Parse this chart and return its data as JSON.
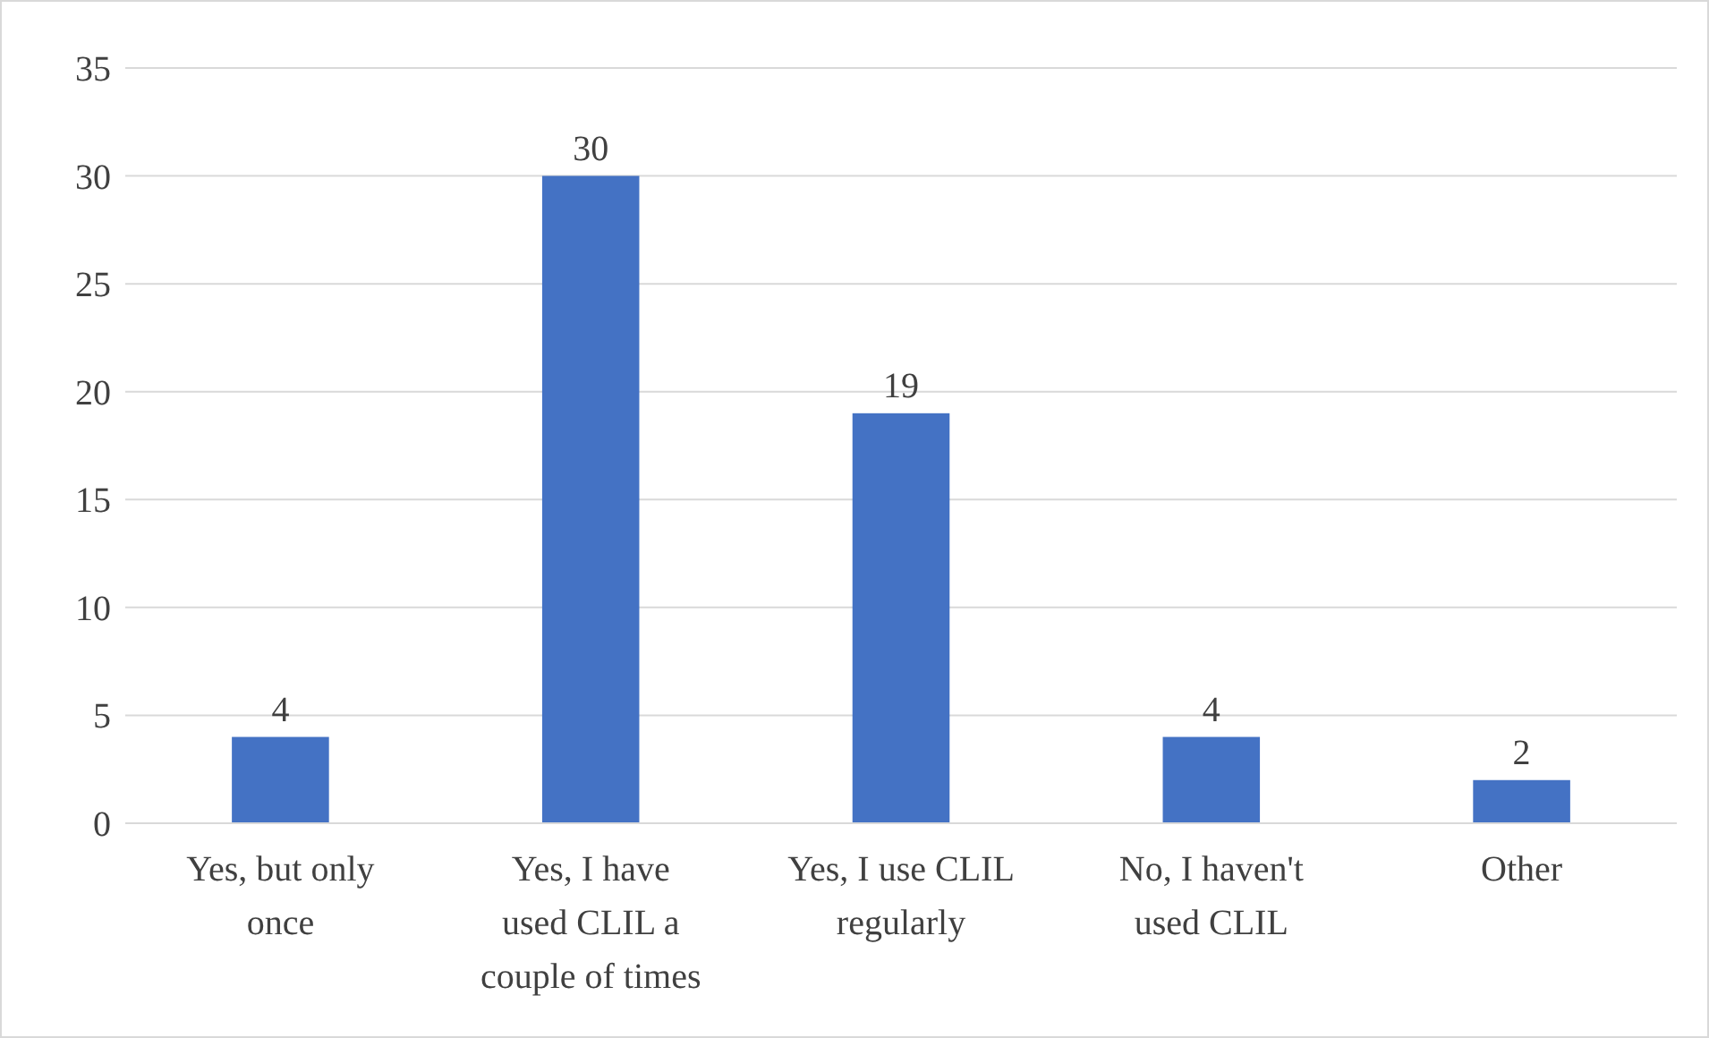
{
  "chart_data": {
    "type": "bar",
    "categories": [
      "Yes, but only once",
      "Yes, I have used CLIL a couple of times",
      "Yes, I use CLIL regularly",
      "No, I haven't used CLIL",
      "Other"
    ],
    "values": [
      4,
      30,
      19,
      4,
      2
    ],
    "color": "#4472c4",
    "ylim": [
      0,
      35
    ],
    "yticks": [
      0,
      5,
      10,
      15,
      20,
      25,
      30,
      35
    ],
    "grid": "y",
    "data_labels": true
  }
}
